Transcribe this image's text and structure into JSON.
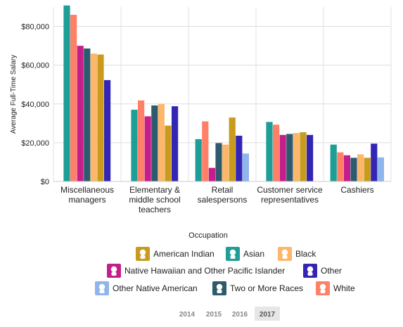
{
  "chart_data": {
    "type": "bar",
    "ylabel": "Average Full-Time Salary",
    "ylim": [
      0,
      90000
    ],
    "yticks": [
      "$0",
      "$20,000",
      "$40,000",
      "$60,000",
      "$80,000"
    ],
    "ytick_values": [
      0,
      20000,
      40000,
      60000,
      80000
    ],
    "categories": [
      [
        "Miscellaneous",
        "managers"
      ],
      [
        "Elementary &",
        "middle school",
        "teachers"
      ],
      [
        "Retail",
        "salespersons"
      ],
      [
        "Customer service",
        "representatives"
      ],
      [
        "Cashiers"
      ]
    ],
    "bar_order": [
      "Asian",
      "White",
      "Native Hawaiian and Other Pacific Islander",
      "Two or More Races",
      "Black",
      "American Indian",
      "Other",
      "Other Native American"
    ],
    "series": [
      {
        "name": "American Indian",
        "color": "#C89B1F",
        "values": [
          65500,
          28800,
          33000,
          25400,
          12200
        ]
      },
      {
        "name": "Asian",
        "color": "#1E9E96",
        "values": [
          90800,
          37000,
          21800,
          30700,
          19000
        ]
      },
      {
        "name": "Black",
        "color": "#FCB76B",
        "values": [
          66000,
          40000,
          19000,
          25000,
          14000
        ]
      },
      {
        "name": "Native Hawaiian and Other Pacific Islander",
        "color": "#C41E8C",
        "values": [
          70000,
          33600,
          7000,
          24000,
          13500
        ]
      },
      {
        "name": "Other",
        "color": "#3326B4",
        "values": [
          52300,
          38800,
          23600,
          24000,
          19500
        ]
      },
      {
        "name": "Other Native American",
        "color": "#8EB5EC",
        "values": [
          null,
          null,
          14400,
          null,
          12400
        ]
      },
      {
        "name": "Two or More Races",
        "color": "#2E5A6E",
        "values": [
          68600,
          39200,
          19800,
          24500,
          12200
        ]
      },
      {
        "name": "White",
        "color": "#FF8066",
        "values": [
          86000,
          41800,
          31000,
          29300,
          15000
        ]
      }
    ],
    "grid": true,
    "legend": {
      "title": "Occupation",
      "placement": "bottom",
      "rows": [
        [
          "American Indian",
          "Asian",
          "Black"
        ],
        [
          "Native Hawaiian and Other Pacific Islander",
          "Other"
        ],
        [
          "Other Native American",
          "Two or More Races",
          "White"
        ]
      ]
    },
    "years": [
      "2014",
      "2015",
      "2016",
      "2017"
    ],
    "selected_year": "2017"
  }
}
